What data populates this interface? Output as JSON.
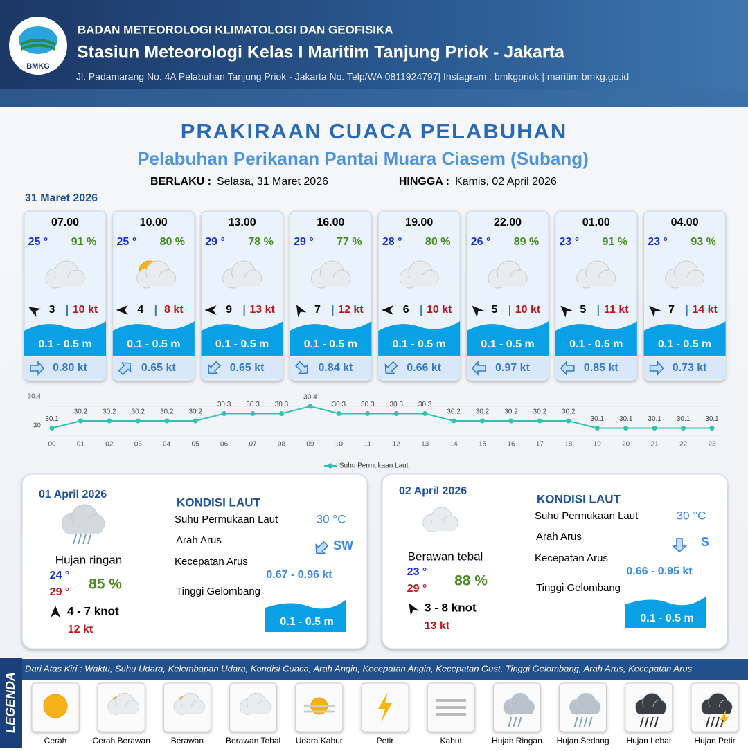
{
  "header": {
    "logo": "BMKG",
    "agency": "BADAN METEOROLOGI KLIMATOLOGI DAN GEOFISIKA",
    "station": "Stasiun Meteorologi Kelas I Maritim Tanjung Priok - Jakarta",
    "address": "Jl. Padamarang No. 4A Pelabuhan Tanjung Priok - Jakarta No. Telp/WA 0811924797| Instagram : bmkgpriok | maritim.bmkg.go.id"
  },
  "title": "PRAKIRAAN CUACA PELABUHAN",
  "subtitle": "Pelabuhan Perikanan Pantai Muara Ciasem (Subang)",
  "validity": {
    "from_label": "BERLAKU :",
    "from": "Selasa, 31 Maret 2026",
    "until_label": "HINGGA :",
    "until": "Kamis, 02 April 2026"
  },
  "day_label": "31 Maret 2026",
  "forecasts": [
    {
      "time": "07.00",
      "temp": "25 °",
      "humidity": "91 %",
      "wind": "3",
      "gust": "10 kt",
      "wave": "0.1 - 0.5 m",
      "current": "0.80 kt"
    },
    {
      "time": "10.00",
      "temp": "25 °",
      "humidity": "80 %",
      "wind": "4",
      "gust": "8 kt",
      "wave": "0.1 - 0.5 m",
      "current": "0.65 kt"
    },
    {
      "time": "13.00",
      "temp": "29 °",
      "humidity": "78 %",
      "wind": "9",
      "gust": "13 kt",
      "wave": "0.1 - 0.5 m",
      "current": "0.65 kt"
    },
    {
      "time": "16.00",
      "temp": "29 °",
      "humidity": "77 %",
      "wind": "7",
      "gust": "12 kt",
      "wave": "0.1 - 0.5 m",
      "current": "0.84 kt"
    },
    {
      "time": "19.00",
      "temp": "28 °",
      "humidity": "80 %",
      "wind": "6",
      "gust": "10 kt",
      "wave": "0.1 - 0.5 m",
      "current": "0.66 kt"
    },
    {
      "time": "22.00",
      "temp": "26 °",
      "humidity": "89 %",
      "wind": "5",
      "gust": "10 kt",
      "wave": "0.1 - 0.5 m",
      "current": "0.97 kt"
    },
    {
      "time": "01.00",
      "temp": "23 °",
      "humidity": "91 %",
      "wind": "5",
      "gust": "11 kt",
      "wave": "0.1 - 0.5 m",
      "current": "0.85 kt"
    },
    {
      "time": "04.00",
      "temp": "23 °",
      "humidity": "93 %",
      "wind": "7",
      "gust": "14 kt",
      "wave": "0.1 - 0.5 m",
      "current": "0.73 kt"
    }
  ],
  "chart_data": {
    "type": "line",
    "categories": [
      "00",
      "01",
      "02",
      "03",
      "04",
      "05",
      "06",
      "07",
      "08",
      "09",
      "10",
      "11",
      "12",
      "13",
      "14",
      "15",
      "16",
      "17",
      "18",
      "19",
      "20",
      "21",
      "22",
      "23"
    ],
    "series": [
      {
        "name": "Suhu Permukaan Laut",
        "color": "#2ec4b0",
        "values": [
          30.1,
          30.2,
          30.2,
          30.2,
          30.2,
          30.2,
          30.3,
          30.3,
          30.3,
          30.4,
          30.3,
          30.3,
          30.3,
          30.3,
          30.2,
          30.2,
          30.2,
          30.2,
          30.2,
          30.1,
          30.1,
          30.1,
          30.1,
          30.1
        ]
      }
    ],
    "ylim": [
      30,
      30.4
    ],
    "yticks": [
      30,
      30.4
    ],
    "grid": true
  },
  "days": [
    {
      "date": "01 April 2026",
      "weather": "Hujan ringan",
      "temp_min": "24 °",
      "temp_max": "29 °",
      "humidity": "85 %",
      "wind": "4  - 7 knot",
      "gust": "12 kt",
      "sea_title": "KONDISI LAUT",
      "sst_label": "Suhu Permukaan Laut",
      "sst": "30 °C",
      "dir_label": "Arah Arus",
      "dir": "SW",
      "speed_label": "Kecepatan Arus",
      "speed": "0.67  - 0.96 kt",
      "wave_label": "Tinggi Gelombang",
      "wave": "0.1 - 0.5 m"
    },
    {
      "date": "02 April 2026",
      "weather": "Berawan tebal",
      "temp_min": "23 °",
      "temp_max": "29 °",
      "humidity": "88 %",
      "wind": "3  - 8 knot",
      "gust": "13 kt",
      "sea_title": "KONDISI LAUT",
      "sst_label": "Suhu Permukaan Laut",
      "sst": "30 °C",
      "dir_label": "Arah Arus",
      "dir": "S",
      "speed_label": "Kecepatan Arus",
      "speed": "0.66  - 0.95 kt",
      "wave_label": "Tinggi Gelombang",
      "wave": "0.1 - 0.5 m"
    }
  ],
  "legend": {
    "title": "LEGENDA",
    "note": "Dari Atas Kiri : Waktu, Suhu Udara, Kelembapan Udara, Kondisi Cuaca, Arah Angin, Kecepatan Angin, Kecepatan Gust, Tinggi Gelombang, Arah Arus, Kecepatan Arus",
    "items": [
      "Cerah",
      "Cerah Berawan",
      "Berawan",
      "Berawan Tebal",
      "Udara Kabur",
      "Petir",
      "Kabut",
      "Hujan Ringan",
      "Hujan Sedang",
      "Hujan Lebat",
      "Hujan Petir"
    ]
  }
}
